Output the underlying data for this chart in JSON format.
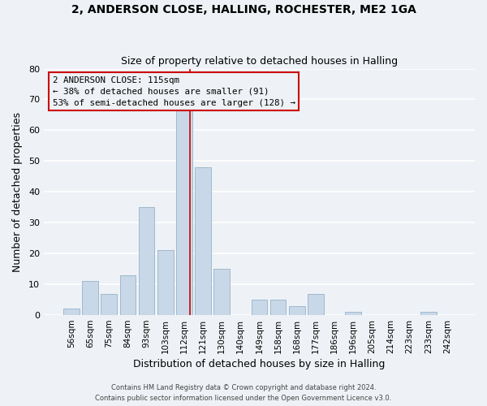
{
  "title1": "2, ANDERSON CLOSE, HALLING, ROCHESTER, ME2 1GA",
  "title2": "Size of property relative to detached houses in Halling",
  "xlabel": "Distribution of detached houses by size in Halling",
  "ylabel": "Number of detached properties",
  "bar_color": "#c8d8e8",
  "bar_edge_color": "#a0b8cc",
  "categories": [
    "56sqm",
    "65sqm",
    "75sqm",
    "84sqm",
    "93sqm",
    "103sqm",
    "112sqm",
    "121sqm",
    "130sqm",
    "140sqm",
    "149sqm",
    "158sqm",
    "168sqm",
    "177sqm",
    "186sqm",
    "196sqm",
    "205sqm",
    "214sqm",
    "223sqm",
    "233sqm",
    "242sqm"
  ],
  "values": [
    2,
    11,
    7,
    13,
    35,
    21,
    67,
    48,
    15,
    0,
    5,
    5,
    3,
    7,
    0,
    1,
    0,
    0,
    0,
    1,
    0
  ],
  "ylim": [
    0,
    80
  ],
  "yticks": [
    0,
    10,
    20,
    30,
    40,
    50,
    60,
    70,
    80
  ],
  "marker_bin_index": 6,
  "marker_label": "2 ANDERSON CLOSE: 115sqm",
  "annotation_line1": "← 38% of detached houses are smaller (91)",
  "annotation_line2": "53% of semi-detached houses are larger (128) →",
  "marker_color": "#cc0000",
  "footer1": "Contains HM Land Registry data © Crown copyright and database right 2024.",
  "footer2": "Contains public sector information licensed under the Open Government Licence v3.0.",
  "background_color": "#eef2f6",
  "grid_color": "#ffffff"
}
